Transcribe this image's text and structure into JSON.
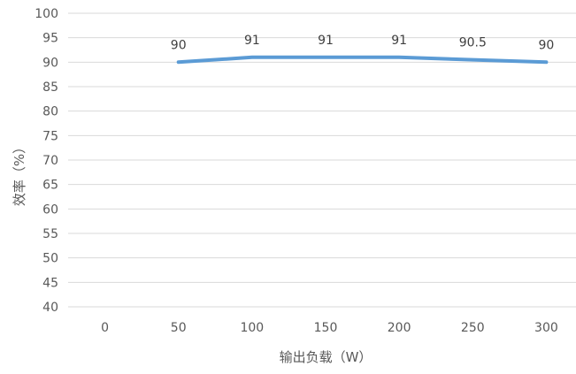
{
  "chart_data": {
    "type": "line",
    "title": "",
    "xlabel": "输出负载（W）",
    "ylabel": "效率（%）",
    "x_ticks": [
      "0",
      "50",
      "100",
      "150",
      "200",
      "250",
      "300"
    ],
    "y_ticks": [
      "40",
      "45",
      "50",
      "55",
      "60",
      "65",
      "70",
      "75",
      "80",
      "85",
      "90",
      "95",
      "100"
    ],
    "ylim": [
      40,
      100
    ],
    "xlim": [
      -25,
      325
    ],
    "grid": "horizontal",
    "legend": "none",
    "series": [
      {
        "color": "#5b9bd5",
        "x": [
          50,
          100,
          150,
          200,
          250,
          300
        ],
        "y": [
          90,
          91,
          91,
          91,
          90.5,
          90
        ],
        "labels": [
          "90",
          "91",
          "91",
          "91",
          "90.5",
          "90"
        ]
      }
    ]
  }
}
